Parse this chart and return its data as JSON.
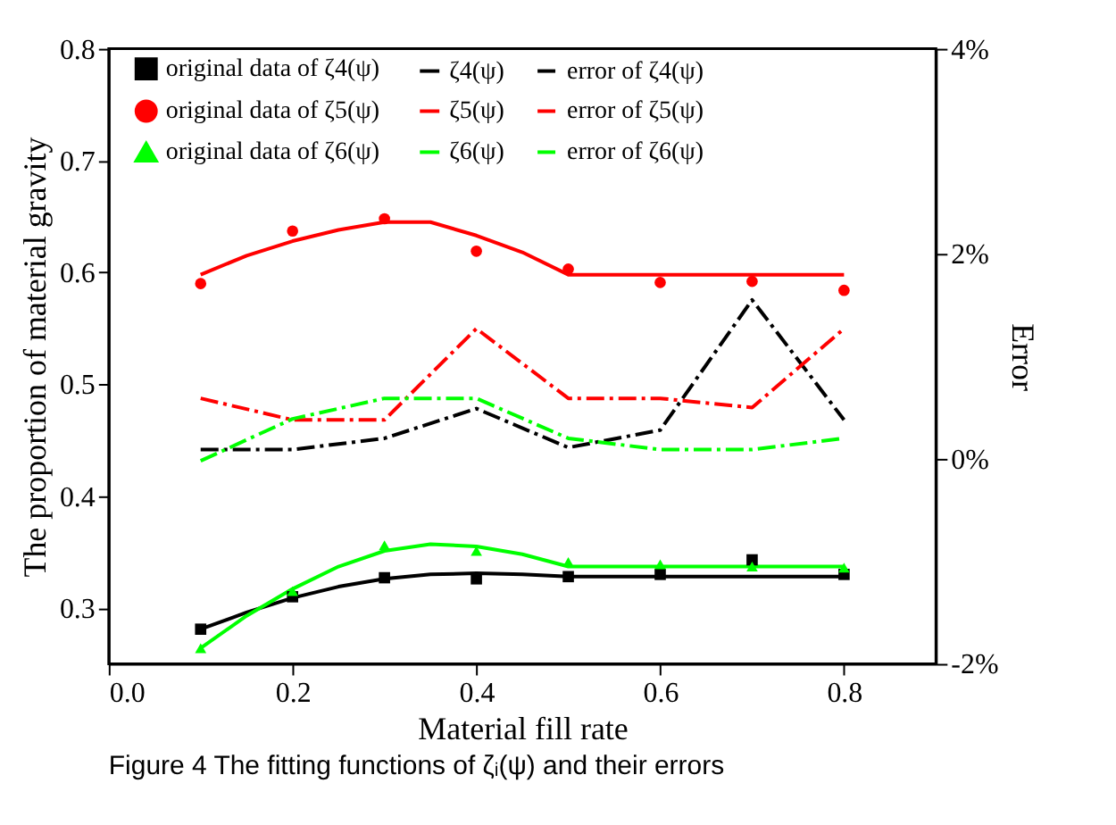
{
  "chart_data": {
    "type": "line",
    "xlabel": "Material fill rate",
    "ylabel": "The proportion of material gravity",
    "y2label": "Error",
    "annotations": [
      "Figure 4  The fitting functions of ζᵢ(ψ) and their errors"
    ],
    "xlim": [
      0,
      0.9
    ],
    "xticks": [
      {
        "value": 0,
        "label": "0.0"
      },
      0.2,
      0.4,
      0.6,
      0.8
    ],
    "ylim": [
      0.25,
      0.8
    ],
    "yticks": [
      0.3,
      0.4,
      0.5,
      0.6,
      0.7,
      0.8
    ],
    "y2lim": [
      -2,
      4
    ],
    "y2ticks": [
      {
        "value": -2,
        "label": "-2%"
      },
      {
        "value": 0,
        "label": "0%"
      },
      {
        "value": 2,
        "label": "2%"
      },
      {
        "value": 4,
        "label": "4%"
      }
    ],
    "legend": "top",
    "grid": false,
    "series": [
      {
        "name": "original data of  ζ4(ψ)",
        "type": "scatter",
        "marker": "square",
        "color": "#000000",
        "x": [
          0.1,
          0.2,
          0.3,
          0.4,
          0.5,
          0.6,
          0.7,
          0.8
        ],
        "values": [
          0.281,
          0.31,
          0.327,
          0.326,
          0.328,
          0.33,
          0.343,
          0.33
        ]
      },
      {
        "name": "ζ4(ψ)",
        "line_style": "solid",
        "color": "#000000",
        "x": [
          0.1,
          0.15,
          0.2,
          0.25,
          0.3,
          0.35,
          0.4,
          0.45,
          0.5,
          0.8
        ],
        "values": [
          0.281,
          0.296,
          0.309,
          0.319,
          0.326,
          0.33,
          0.331,
          0.33,
          0.328,
          0.328
        ]
      },
      {
        "name": "error of  ζ4(ψ)",
        "line_style": "dashdot",
        "axis": "y2",
        "color": "#000000",
        "x": [
          0.1,
          0.2,
          0.3,
          0.4,
          0.5,
          0.6,
          0.7,
          0.8
        ],
        "values": [
          0.09,
          0.09,
          0.2,
          0.49,
          0.11,
          0.28,
          1.55,
          0.38
        ]
      },
      {
        "name": "original data of  ζ5(ψ)",
        "type": "scatter",
        "marker": "circle",
        "color": "#ff0000",
        "x": [
          0.1,
          0.2,
          0.3,
          0.4,
          0.5,
          0.6,
          0.7,
          0.8
        ],
        "values": [
          0.59,
          0.637,
          0.648,
          0.619,
          0.603,
          0.591,
          0.592,
          0.584
        ]
      },
      {
        "name": "ζ5(ψ)",
        "line_style": "solid",
        "color": "#ff0000",
        "x": [
          0.1,
          0.15,
          0.2,
          0.25,
          0.3,
          0.35,
          0.4,
          0.45,
          0.5,
          0.8
        ],
        "values": [
          0.598,
          0.615,
          0.628,
          0.638,
          0.645,
          0.645,
          0.633,
          0.618,
          0.598,
          0.598
        ]
      },
      {
        "name": "error of  ζ5(ψ)",
        "line_style": "dashdot",
        "axis": "y2",
        "color": "#ff0000",
        "x": [
          0.1,
          0.2,
          0.3,
          0.4,
          0.5,
          0.6,
          0.7,
          0.8
        ],
        "values": [
          0.59,
          0.38,
          0.38,
          1.27,
          0.59,
          0.59,
          0.5,
          1.27
        ]
      },
      {
        "name": "original data of  ζ6(ψ)",
        "type": "scatter",
        "marker": "triangle",
        "color": "#00ff00",
        "x": [
          0.1,
          0.2,
          0.3,
          0.4,
          0.5,
          0.6,
          0.7,
          0.8
        ],
        "values": [
          0.264,
          0.315,
          0.356,
          0.351,
          0.341,
          0.339,
          0.337,
          0.336
        ]
      },
      {
        "name": "ζ6(ψ)",
        "line_style": "solid",
        "color": "#00ff00",
        "x": [
          0.1,
          0.15,
          0.2,
          0.25,
          0.3,
          0.35,
          0.4,
          0.45,
          0.5,
          0.8
        ],
        "values": [
          0.264,
          0.293,
          0.317,
          0.337,
          0.351,
          0.357,
          0.355,
          0.348,
          0.337,
          0.337
        ]
      },
      {
        "name": "error of  ζ6(ψ)",
        "line_style": "dashdot",
        "axis": "y2",
        "color": "#00ff00",
        "x": [
          0.1,
          0.2,
          0.3,
          0.4,
          0.5,
          0.6,
          0.7,
          0.8
        ],
        "values": [
          -0.02,
          0.39,
          0.59,
          0.59,
          0.2,
          0.09,
          0.09,
          0.2
        ]
      }
    ]
  }
}
